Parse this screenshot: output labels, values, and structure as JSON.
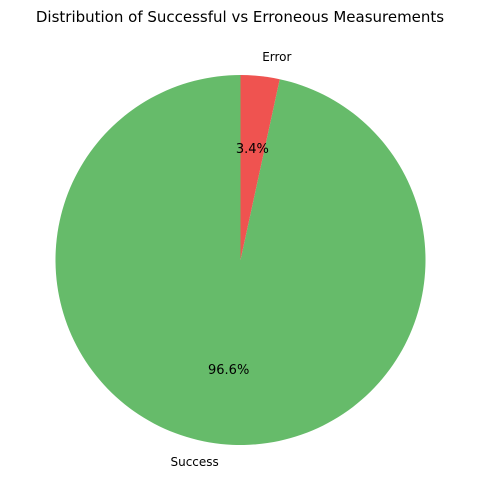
{
  "chart_data": {
    "type": "pie",
    "title": "Distribution of Successful vs Erroneous Measurements",
    "categories": [
      "Success",
      "Error"
    ],
    "values": [
      96.6,
      3.4
    ],
    "value_labels": [
      "96.6%",
      "3.4%"
    ],
    "colors": [
      "#66bb6a",
      "#ef5350"
    ],
    "start_angle_deg": 90,
    "direction": "counterclockwise",
    "legend": "none"
  }
}
